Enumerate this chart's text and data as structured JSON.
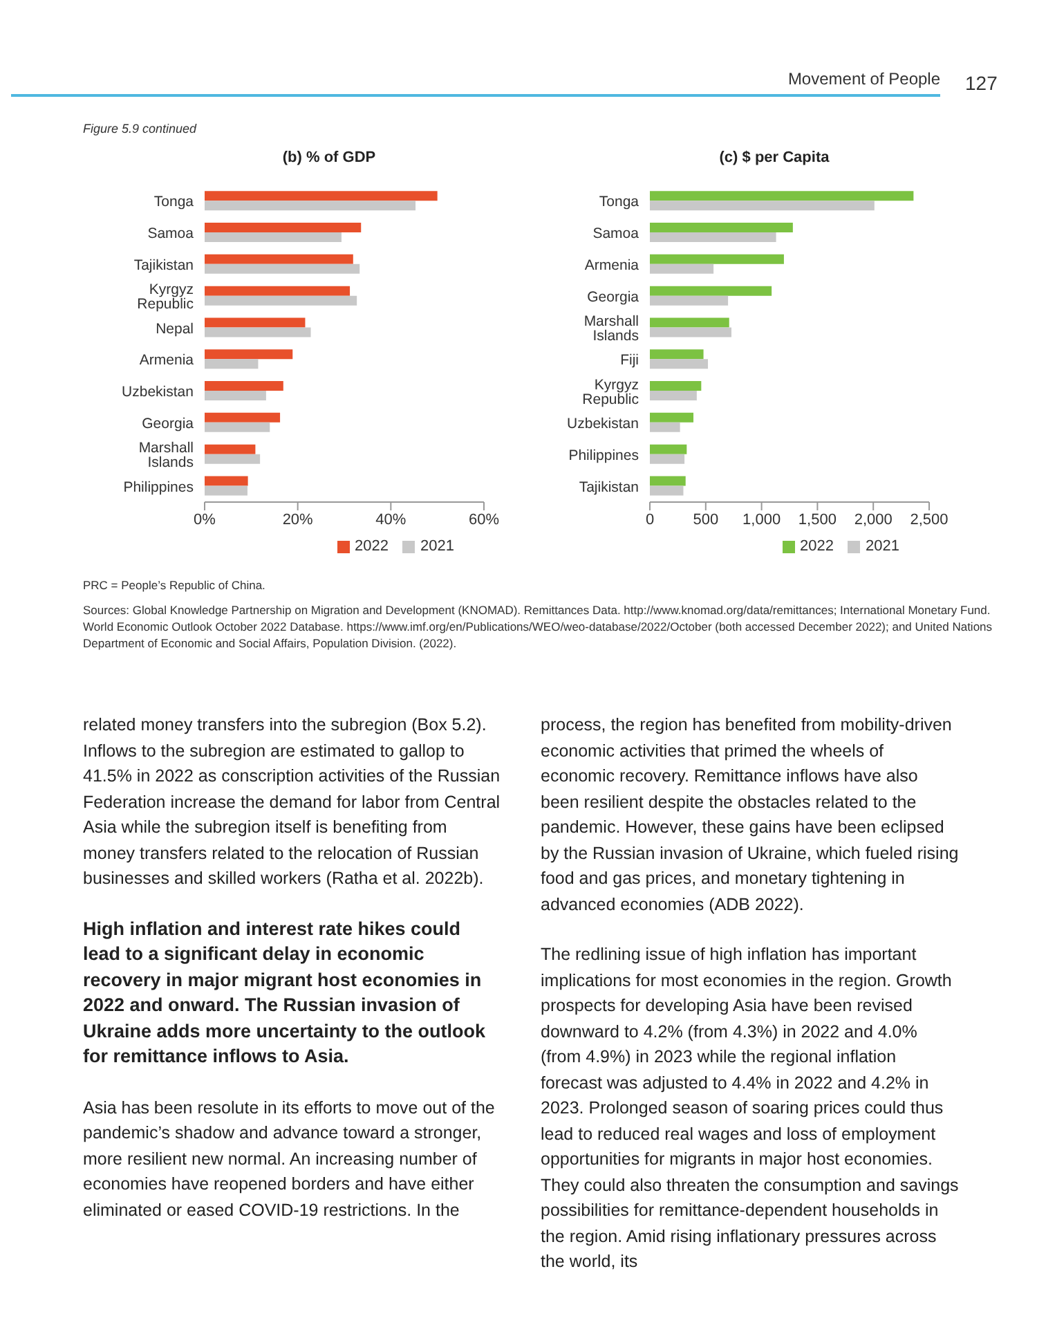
{
  "chart_data": [
    {
      "type": "bar",
      "orientation": "horizontal",
      "title": "(b) % of GDP",
      "categories": [
        "Tonga",
        "Samoa",
        "Tajikistan",
        "Kyrgyz Republic",
        "Nepal",
        "Armenia",
        "Uzbekistan",
        "Georgia",
        "Marshall Islands",
        "Philippines"
      ],
      "series": [
        {
          "name": "2022",
          "color": "#e8502b",
          "values": [
            50,
            33.6,
            31.9,
            31.2,
            21.6,
            18.9,
            16.9,
            16.2,
            10.9,
            9.3
          ]
        },
        {
          "name": "2021",
          "color": "#c8c8c8",
          "values": [
            45.3,
            29.4,
            33.3,
            32.7,
            22.8,
            11.5,
            13.2,
            14.0,
            11.9,
            9.2
          ]
        }
      ],
      "xlim": [
        0,
        60
      ],
      "xticks": [
        {
          "value": 0,
          "label": "0%"
        },
        {
          "value": 20,
          "label": "20%"
        },
        {
          "value": 40,
          "label": "40%"
        },
        {
          "value": 60,
          "label": "60%"
        }
      ],
      "grid": false,
      "legend": "bottom"
    },
    {
      "type": "bar",
      "orientation": "horizontal",
      "title": "(c) $ per Capita",
      "categories": [
        "Tonga",
        "Samoa",
        "Armenia",
        "Georgia",
        "Marshall Islands",
        "Fiji",
        "Kyrgyz Republic",
        "Uzbekistan",
        "Philippines",
        "Tajikistan"
      ],
      "series": [
        {
          "name": "2022",
          "color": "#7cc242",
          "values": [
            2360,
            1280,
            1200,
            1090,
            710,
            480,
            460,
            390,
            330,
            320
          ]
        },
        {
          "name": "2021",
          "color": "#c8c8c8",
          "values": [
            2010,
            1130,
            570,
            700,
            730,
            520,
            420,
            270,
            310,
            300
          ]
        }
      ],
      "xlim": [
        0,
        2500
      ],
      "xticks": [
        0,
        {
          "value": 500,
          "label": "500"
        },
        {
          "value": 1000,
          "label": "1,000"
        },
        {
          "value": 1500,
          "label": "1,500"
        },
        {
          "value": 2000,
          "label": "2,000"
        },
        {
          "value": 2500,
          "label": "2,500"
        }
      ],
      "grid": false,
      "legend": "bottom"
    },
    {
      "type": "other",
      "annotations": [
        "Movement of People",
        "127",
        "Figure 5.9 continued",
        "PRC = People’s Republic of China.",
        "Sources: Global Knowledge Partnership on Migration and Development (KNOMAD). Remittances Data. http://www.knomad.org/data/remittances; International Monetary Fund. World Economic Outlook October 2022 Database. https://www.imf.org/en/Publications/WEO/weo-database/2022/October (both accessed December 2022); and United Nations Department of Economic and Social Affairs, Population Division. (2022).",
        "related money transfers into the subregion (Box 5.2). Inflows to the subregion are estimated to gallop to 41.5% in 2022 as conscription activities of the Russian Federation increase the demand for labor from Central Asia while the subregion itself is benefiting from money transfers related to the relocation of Russian businesses and skilled workers (Ratha et al. 2022b).",
        "High inflation and interest rate hikes could lead to a significant delay in economic recovery in major migrant host economies in 2022 and onward. The Russian invasion of Ukraine adds more uncertainty to the outlook for remittance inflows to Asia.",
        "Asia has been resolute in its efforts to move out of the pandemic’s shadow and advance toward a stronger, more resilient new normal. An increasing number of economies have reopened borders and have either eliminated or eased COVID-19 restrictions. In the",
        "process, the region has benefited from mobility-driven economic activities that primed the wheels of economic recovery. Remittance inflows have also been resilient despite the obstacles related to the pandemic. However, these gains have been eclipsed by the Russian invasion of Ukraine, which fueled rising food and gas prices, and monetary tightening in advanced economies (ADB 2022).",
        "The redlining issue of high inflation has important implications for most economies in the region. Growth prospects for developing Asia have been revised downward to 4.2% (from 4.3%) in 2022 and 4.0% (from 4.9%) in 2023 while the regional inflation forecast was adjusted to 4.4% in 2022 and 4.2% in 2023. Prolonged season of soaring prices could thus lead to reduced real wages and loss of employment opportunities for migrants in major host economies. They could also threaten the consumption and savings possibilities for remittance-dependent households in the region. Amid rising inflationary pressures across the world, its"
      ]
    }
  ]
}
